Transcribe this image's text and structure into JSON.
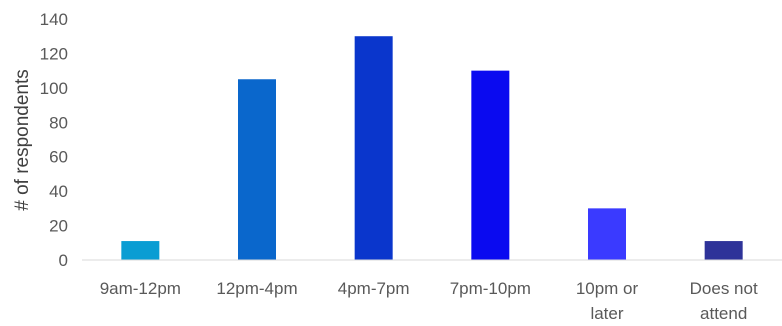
{
  "chart_data": {
    "type": "bar",
    "title": "",
    "xlabel": "",
    "ylabel": "# of respondents",
    "ylim": [
      0,
      140
    ],
    "yticks": [
      0,
      20,
      40,
      60,
      80,
      100,
      120,
      140
    ],
    "grid": false,
    "legend": "none",
    "categories": [
      [
        "9am-12pm"
      ],
      [
        "12pm-4pm"
      ],
      [
        "4pm-7pm"
      ],
      [
        "7pm-10pm"
      ],
      [
        "10pm or",
        "later"
      ],
      [
        "Does not",
        "attend"
      ]
    ],
    "values": [
      11,
      105,
      130,
      110,
      30,
      11
    ],
    "colors": [
      "#0a9dd3",
      "#0a67cc",
      "#0a36cc",
      "#0a0af0",
      "#3a3aff",
      "#2e3399"
    ]
  }
}
